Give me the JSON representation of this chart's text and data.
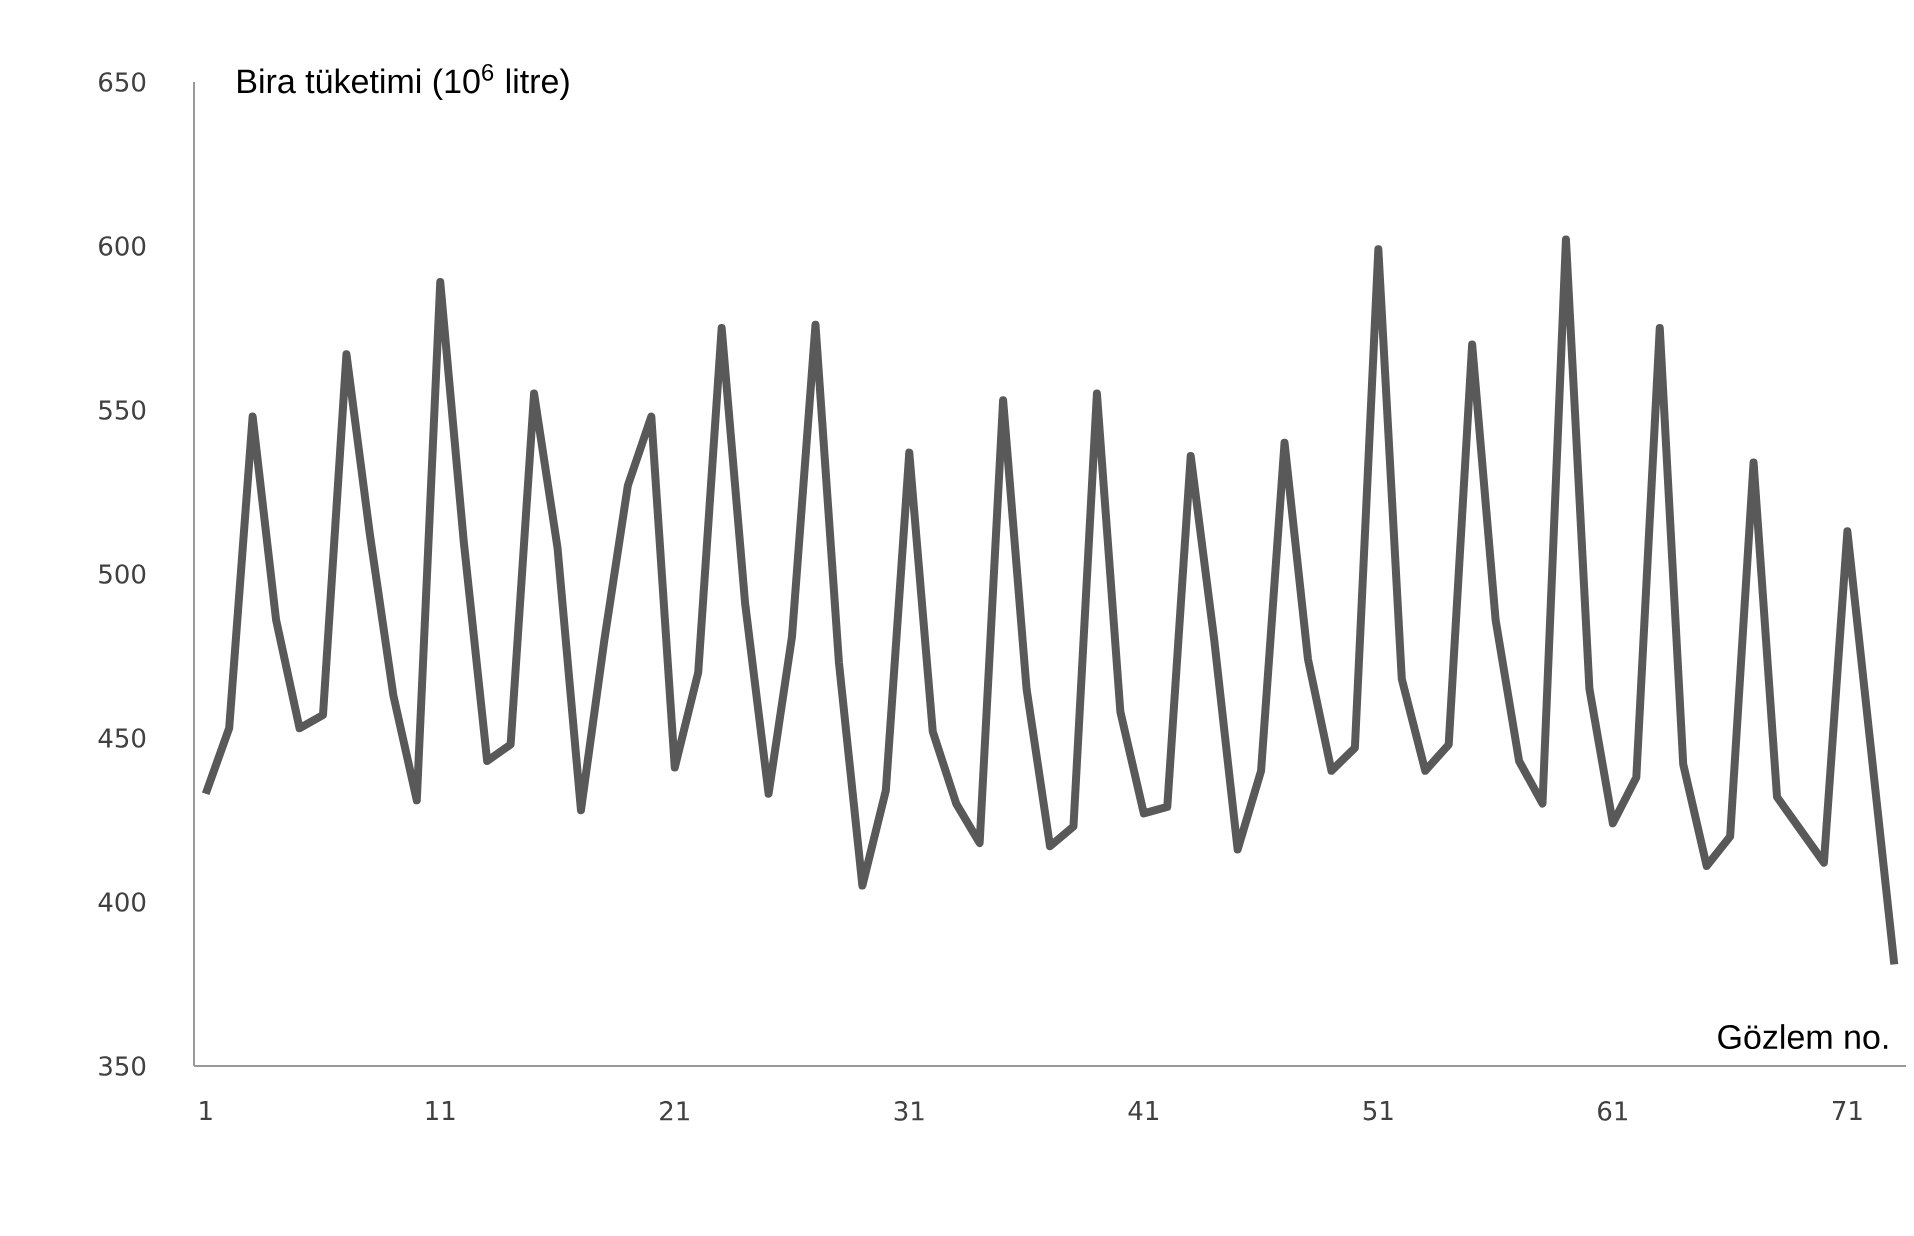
{
  "chart_data": {
    "type": "line",
    "ylabel": "Bira tüketimi (10$^{6}$ litre)",
    "xlabel": "Gözlem no.",
    "x": [
      1,
      2,
      3,
      4,
      5,
      6,
      7,
      8,
      9,
      10,
      11,
      12,
      13,
      14,
      15,
      16,
      17,
      18,
      19,
      20,
      21,
      22,
      23,
      24,
      25,
      26,
      27,
      28,
      29,
      30,
      31,
      32,
      33,
      34,
      35,
      36,
      37,
      38,
      39,
      40,
      41,
      42,
      43,
      44,
      45,
      46,
      47,
      48,
      49,
      50,
      51,
      52,
      53,
      54,
      55,
      56,
      57,
      58,
      59,
      60,
      61,
      62,
      63,
      64,
      65,
      66,
      67,
      68,
      69,
      70,
      71,
      72,
      73
    ],
    "series": [
      {
        "color": "#595959",
        "values": [
          433,
          453,
          548,
          486,
          453,
          457,
          567,
          512,
          463,
          431,
          589,
          510,
          443,
          448,
          555,
          508,
          428,
          480,
          527,
          548,
          441,
          470,
          575,
          491,
          433,
          481,
          576,
          473,
          405,
          434,
          537,
          452,
          430,
          418,
          553,
          465,
          417,
          423,
          555,
          458,
          427,
          429,
          536,
          480,
          416,
          440,
          540,
          474,
          440,
          447,
          599,
          468,
          440,
          448,
          570,
          486,
          443,
          430,
          602,
          465,
          424,
          438,
          575,
          442,
          411,
          420,
          534,
          432,
          422,
          412,
          513,
          447,
          381
        ]
      }
    ],
    "xlim": [
      0.5,
      73.5
    ],
    "xticks": [
      1,
      11,
      21,
      31,
      41,
      51,
      61,
      71
    ],
    "ylim": [
      350,
      650
    ],
    "yticks": [
      350,
      400,
      450,
      500,
      550,
      600,
      650
    ],
    "grid": false,
    "marker": "none",
    "line_style": "solid"
  }
}
